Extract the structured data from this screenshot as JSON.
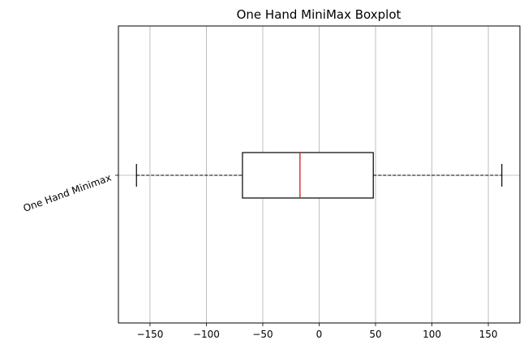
{
  "chart_data": {
    "type": "boxplot",
    "title": "One Hand MiniMax Boxplot",
    "orientation": "horizontal",
    "categories": [
      "One Hand Minimax"
    ],
    "series": [
      {
        "name": "One Hand Minimax",
        "whisker_low": -162,
        "q1": -68,
        "median": -17,
        "q3": 48,
        "whisker_high": 162
      }
    ],
    "xlim": [
      -178,
      178
    ],
    "xticks": [
      -150,
      -100,
      -50,
      0,
      50,
      100,
      150
    ],
    "xtick_labels": [
      "−150",
      "−100",
      "−50",
      "0",
      "50",
      "100",
      "150"
    ],
    "grid": true,
    "colors": {
      "box": "#000000",
      "median": "#d62728",
      "grid": "#b0b0b0",
      "whisker": "#000000"
    }
  }
}
